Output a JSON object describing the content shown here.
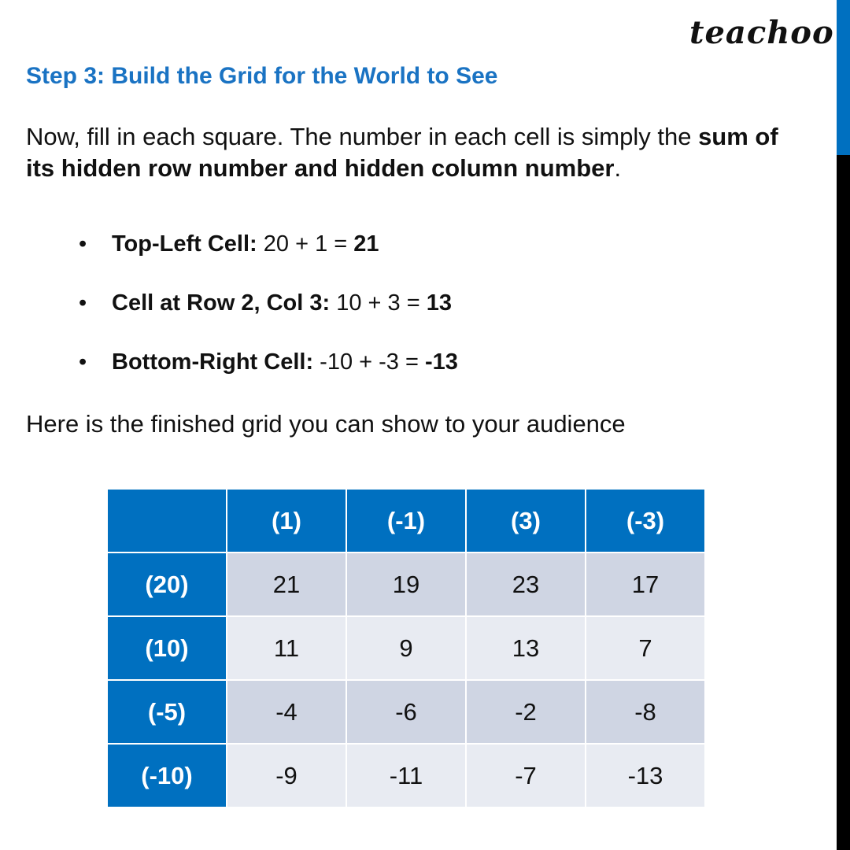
{
  "logo": "teachoo",
  "title": "Step 3:  Build the Grid for the World to See",
  "intro": {
    "pre": "Now, fill in each square. The number in each cell is simply the ",
    "bold": "sum of its hidden row number and hidden column number",
    "post": "."
  },
  "bullets": [
    {
      "label": "Top-Left Cell:",
      "expr": " 20 + 1 = ",
      "result": "21"
    },
    {
      "label": "Cell at Row 2, Col 3:",
      "expr": " 10 + 3 = ",
      "result": "13"
    },
    {
      "label": "Bottom-Right Cell:",
      "expr": " -10 + -3 = ",
      "result": "-13"
    }
  ],
  "outro": "Here is the finished grid you can show to your audience",
  "table": {
    "columns": [
      "(1)",
      "(-1)",
      "(3)",
      "(-3)"
    ],
    "rows": [
      {
        "header": "(20)",
        "cells": [
          "21",
          "19",
          "23",
          "17"
        ]
      },
      {
        "header": "(10)",
        "cells": [
          "11",
          "9",
          "13",
          "7"
        ]
      },
      {
        "header": "(-5)",
        "cells": [
          "-4",
          "-6",
          "-2",
          "-8"
        ]
      },
      {
        "header": "(-10)",
        "cells": [
          "-9",
          "-11",
          "-7",
          "-13"
        ]
      }
    ]
  },
  "colors": {
    "accent": "#0070c0",
    "title": "#1a73c3"
  }
}
